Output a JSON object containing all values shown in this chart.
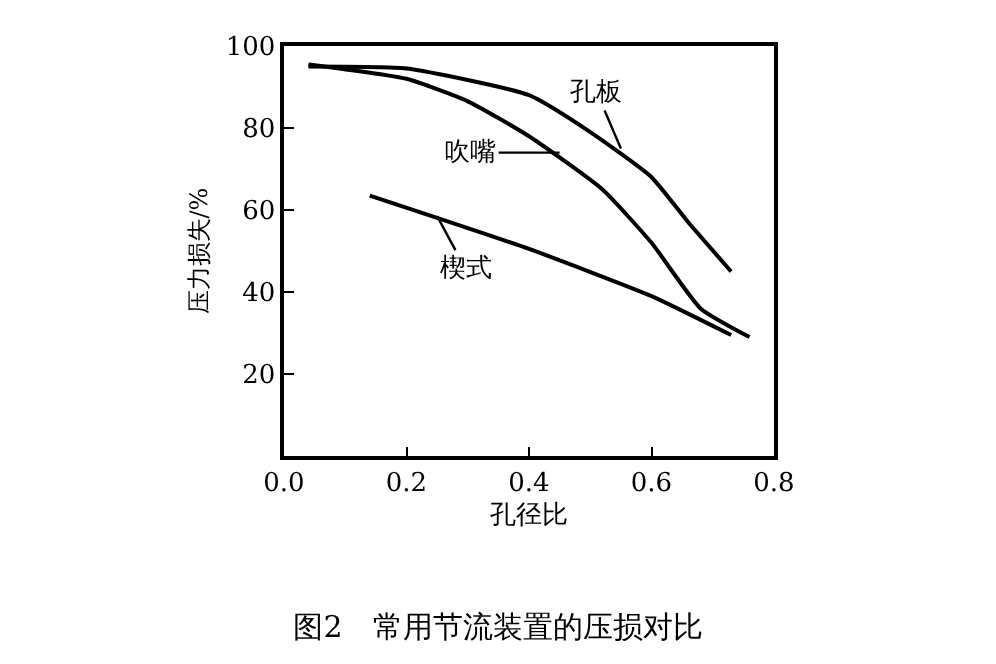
{
  "chart_data": {
    "type": "line",
    "title": "图2　常用节流装置的压损对比",
    "xlabel": "孔径比",
    "ylabel": "压力损失/%",
    "xlim": [
      0,
      0.8
    ],
    "ylim": [
      0,
      100
    ],
    "xticks": [
      {
        "value": 0,
        "label": "0.0"
      },
      0.2,
      0.4,
      0.6,
      0.8
    ],
    "yticks": [
      20,
      40,
      60,
      80,
      100
    ],
    "marker": "none",
    "line_style": "solid",
    "series": [
      {
        "color": "#000000",
        "x": [
          0.04,
          0.2,
          0.4,
          0.5,
          0.6,
          0.66,
          0.73
        ],
        "values": [
          95,
          94.5,
          88,
          79,
          68,
          57,
          45
        ]
      },
      {
        "color": "#000000",
        "x": [
          0.04,
          0.2,
          0.3,
          0.4,
          0.52,
          0.6,
          0.68,
          0.76
        ],
        "values": [
          95.5,
          92,
          86.5,
          78,
          65,
          52,
          36,
          29
        ]
      },
      {
        "color": "#000000",
        "x": [
          0.14,
          0.4,
          0.6,
          0.73
        ],
        "values": [
          63.5,
          50.5,
          39,
          29.5
        ]
      }
    ],
    "annotations": [
      {
        "text": "孔板",
        "x": 0.55,
        "y": 75
      },
      {
        "text": "吹嘴",
        "x": 0.45,
        "y": 74
      },
      {
        "text": "楔式",
        "x": 0.25,
        "y": 58.5
      }
    ]
  }
}
